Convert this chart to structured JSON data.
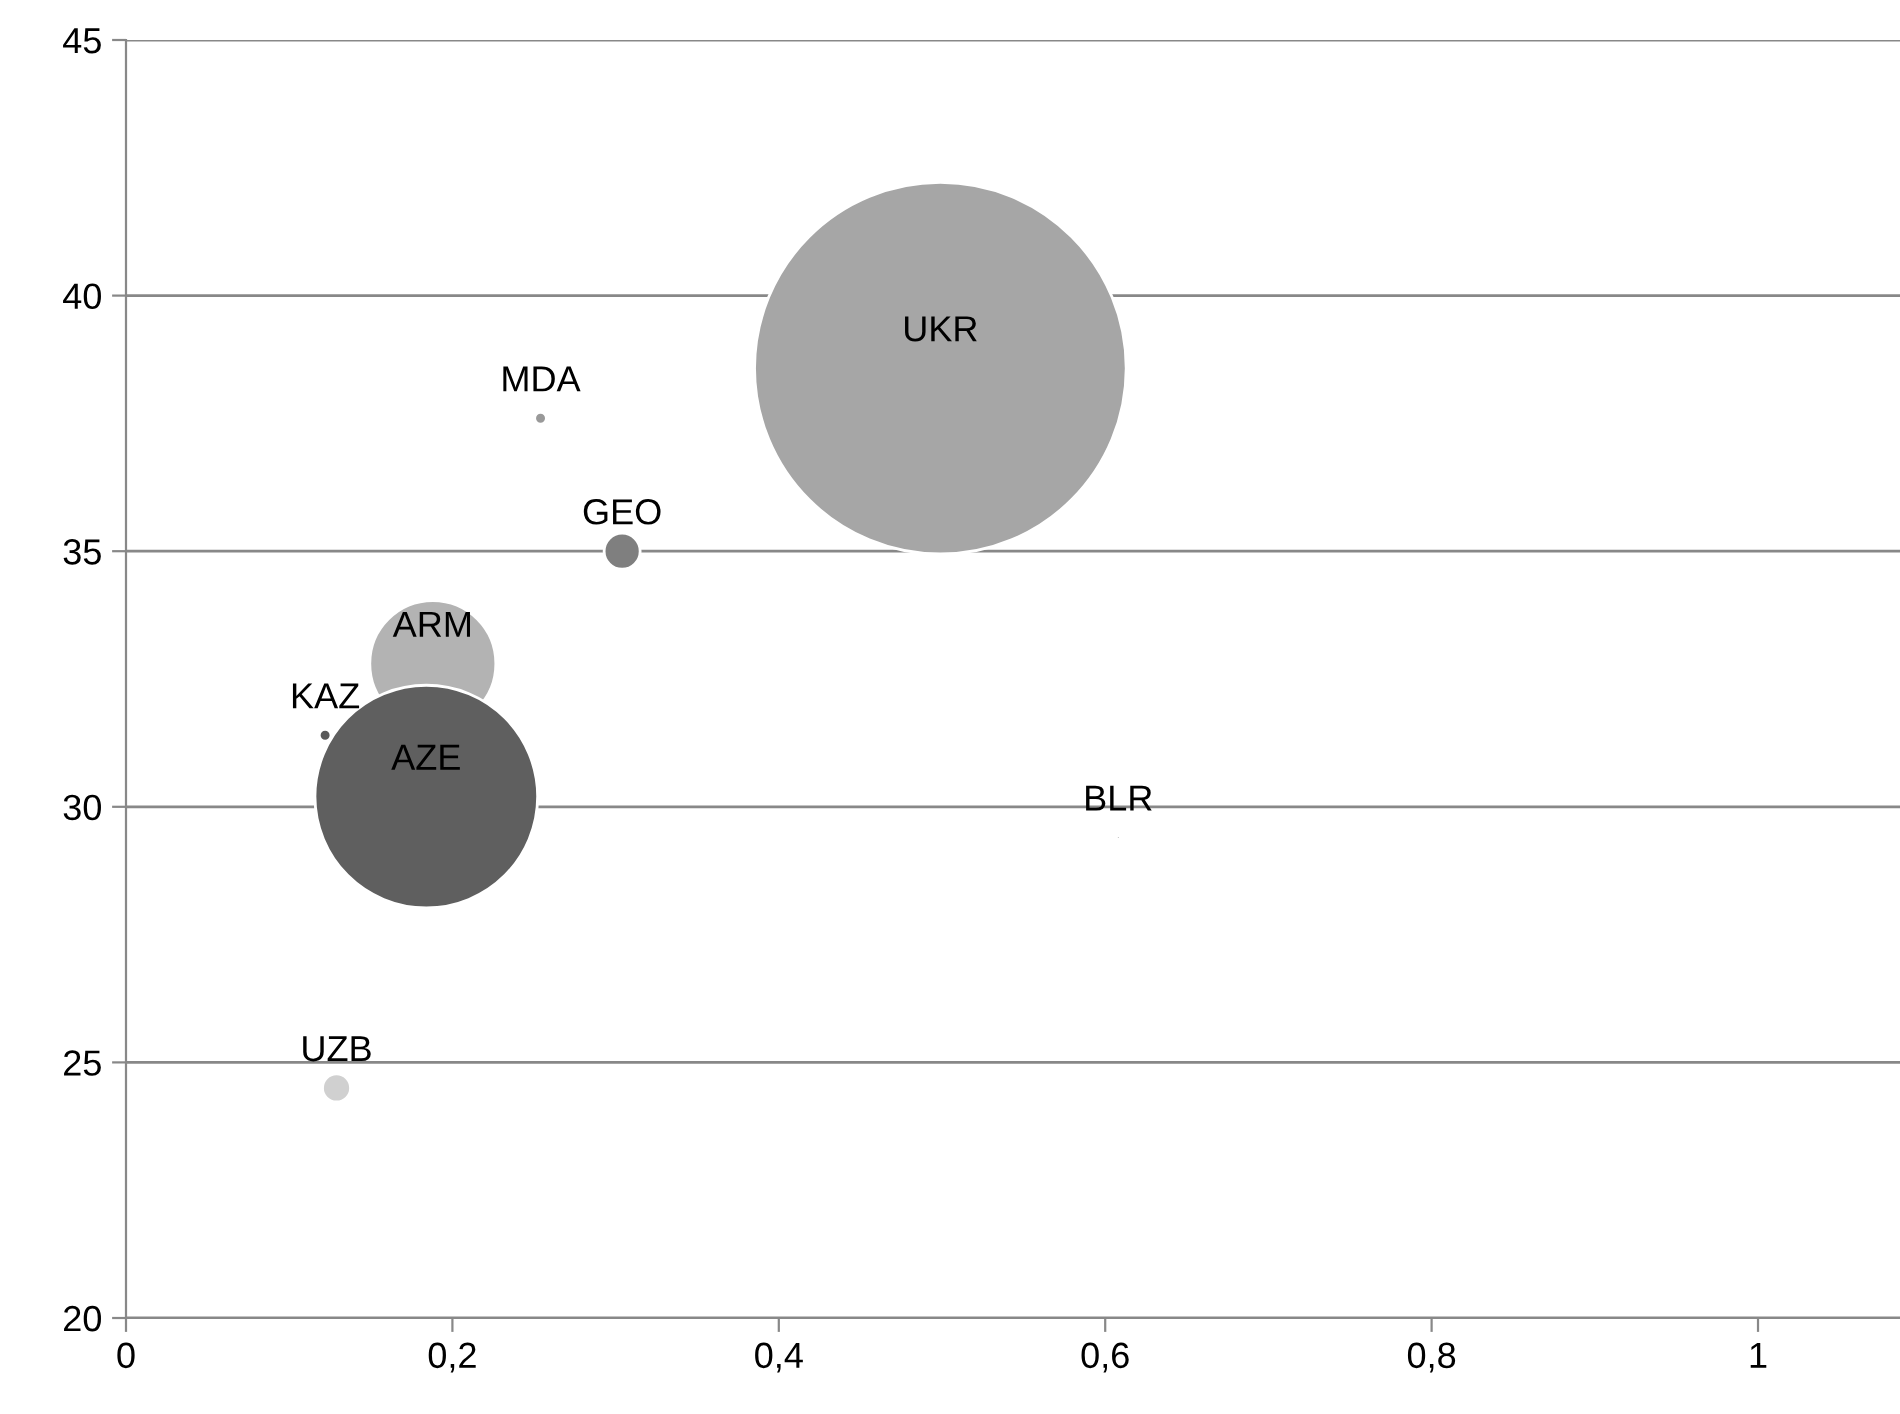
{
  "chart_data": {
    "type": "bubble",
    "x": [
      0.499,
      0.254,
      0.304,
      0.188,
      0.122,
      0.184,
      0.608,
      0.129
    ],
    "values": [
      38.58,
      37.6,
      35.0,
      32.8,
      31.4,
      30.2,
      29.4,
      24.5
    ],
    "sizes": [
      1,
      0.001,
      0.0094,
      0.115,
      0.001,
      0.359,
      0.0001,
      0.0057
    ],
    "colors": [
      "#a6a6a6",
      "#999999",
      "#7f7f7f",
      "#b3b3b3",
      "#595959",
      "#5f5f5f",
      "#999999",
      "#d0d0d0"
    ],
    "annotations": [
      {
        "text": "UKR",
        "x": 0.499,
        "y": 38.58
      },
      {
        "text": "MDA",
        "x": 0.254,
        "y": 37.6
      },
      {
        "text": "GEO",
        "x": 0.304,
        "y": 35.0
      },
      {
        "text": "ARM",
        "x": 0.188,
        "y": 32.8
      },
      {
        "text": "KAZ",
        "x": 0.122,
        "y": 31.4
      },
      {
        "text": "AZE",
        "x": 0.184,
        "y": 30.2
      },
      {
        "text": "BLR",
        "x": 0.608,
        "y": 29.4
      },
      {
        "text": "UZB",
        "x": 0.129,
        "y": 24.5
      }
    ],
    "xlim": [
      0,
      1.087
    ],
    "ylim": [
      20,
      45
    ],
    "xticks": [
      0,
      {
        "value": 0.2,
        "label": "0,2"
      },
      {
        "value": 0.4,
        "label": "0,4"
      },
      {
        "value": 0.6,
        "label": "0,6"
      },
      {
        "value": 0.8,
        "label": "0,8"
      },
      1
    ],
    "yticks": [
      20,
      25,
      30,
      35,
      40,
      45
    ],
    "grid": "y",
    "legend": false
  }
}
